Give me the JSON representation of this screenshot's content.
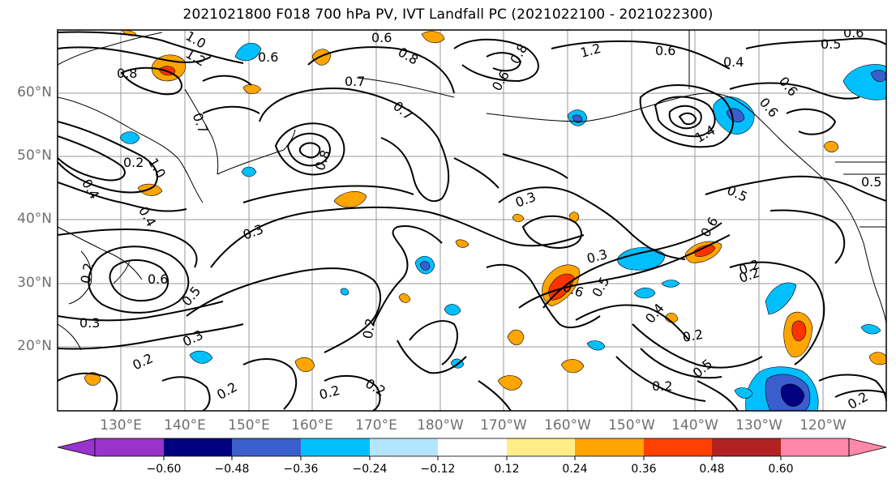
{
  "title": "2021021800 F018 700 hPa PV, IVT Landfall PC (2021022100 - 2021022300)",
  "map": {
    "lat_labels": [
      "60°N",
      "50°N",
      "40°N",
      "30°N",
      "20°N"
    ],
    "lon_labels": [
      "130°E",
      "140°E",
      "150°E",
      "160°E",
      "170°E",
      "180°W",
      "170°W",
      "160°W",
      "150°W",
      "140°W",
      "130°W",
      "120°W"
    ],
    "contour_labels": [
      "1.0",
      "1.2",
      "0.8",
      "0.6",
      "0.6",
      "0.8",
      "0.7",
      "0.6",
      "1.2",
      "0.6",
      "0.8",
      "0.4",
      "0.5",
      "0.6",
      "0.7",
      "0.6",
      "0.8",
      "1.4",
      "0.2",
      "1.0",
      "0.4",
      "0.7",
      "0.3",
      "0.3",
      "0.5",
      "0.5",
      "0.6",
      "0.6",
      "0.4",
      "0.2",
      "0.2",
      "0.6",
      "0.5",
      "0.3",
      "0.3",
      "0.6",
      "0.5",
      "0.3",
      "0.2",
      "0.2",
      "0.4",
      "0.2",
      "0.5",
      "0.2",
      "0.2",
      "0.2",
      "0.2",
      "0.2",
      "0.2"
    ],
    "shading_colors": {
      "orange": "#ffa500",
      "red": "#ff3300",
      "light_blue": "#00bfff",
      "blue": "#3a5fcd",
      "navy": "#000080"
    }
  },
  "colorbar": {
    "colors": [
      "#9933cc",
      "#000080",
      "#3a5fcd",
      "#00bfff",
      "#b3e5ff",
      "#ffffff",
      "#ffee88",
      "#ffa500",
      "#ff4000",
      "#b22222",
      "#ff88aa"
    ],
    "tick_labels": [
      "−0.60",
      "−0.48",
      "−0.36",
      "−0.24",
      "−0.12",
      "0.12",
      "0.24",
      "0.36",
      "0.48",
      "0.60"
    ]
  }
}
